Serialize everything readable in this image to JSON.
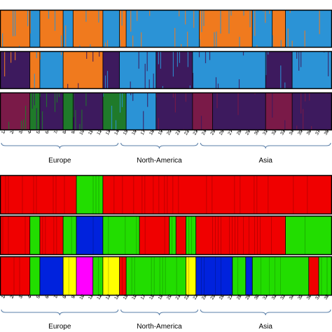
{
  "colors": {
    "orange": "#f07a1e",
    "blue": "#2b93d6",
    "purple": "#3d1a5e",
    "maroon": "#7a1a48",
    "green": "#1f7a2a",
    "red": "#f00000",
    "lime": "#22dd00",
    "navy": "#0022dd",
    "yellow": "#ffff00",
    "magenta": "#ff00ff"
  },
  "chart_data": [
    {
      "type": "stacked-bar-admixture",
      "panel": "top",
      "rows": [
        {
          "k": 2,
          "segments": [
            {
              "start": 0.0,
              "end": 0.09,
              "color": "orange"
            },
            {
              "start": 0.09,
              "end": 0.12,
              "color": "blue"
            },
            {
              "start": 0.12,
              "end": 0.19,
              "color": "orange"
            },
            {
              "start": 0.19,
              "end": 0.22,
              "color": "blue"
            },
            {
              "start": 0.22,
              "end": 0.31,
              "color": "orange"
            },
            {
              "start": 0.31,
              "end": 0.36,
              "color": "blue"
            },
            {
              "start": 0.36,
              "end": 0.38,
              "color": "orange"
            },
            {
              "start": 0.38,
              "end": 0.6,
              "color": "blue"
            },
            {
              "start": 0.6,
              "end": 0.76,
              "color": "orange"
            },
            {
              "start": 0.76,
              "end": 0.82,
              "color": "blue"
            },
            {
              "start": 0.82,
              "end": 0.86,
              "color": "orange"
            },
            {
              "start": 0.86,
              "end": 1.0,
              "color": "blue"
            }
          ]
        },
        {
          "k": 3,
          "segments": [
            {
              "start": 0.0,
              "end": 0.09,
              "color": "purple"
            },
            {
              "start": 0.09,
              "end": 0.12,
              "color": "orange"
            },
            {
              "start": 0.12,
              "end": 0.19,
              "color": "blue"
            },
            {
              "start": 0.19,
              "end": 0.31,
              "color": "orange"
            },
            {
              "start": 0.31,
              "end": 0.36,
              "color": "purple"
            },
            {
              "start": 0.36,
              "end": 0.47,
              "color": "blue"
            },
            {
              "start": 0.47,
              "end": 0.58,
              "color": "purple"
            },
            {
              "start": 0.58,
              "end": 0.8,
              "color": "blue"
            },
            {
              "start": 0.8,
              "end": 0.88,
              "color": "purple"
            },
            {
              "start": 0.88,
              "end": 1.0,
              "color": "blue"
            }
          ]
        },
        {
          "k": 4,
          "segments": [
            {
              "start": 0.0,
              "end": 0.09,
              "color": "maroon"
            },
            {
              "start": 0.09,
              "end": 0.12,
              "color": "green"
            },
            {
              "start": 0.12,
              "end": 0.19,
              "color": "purple"
            },
            {
              "start": 0.19,
              "end": 0.22,
              "color": "green"
            },
            {
              "start": 0.22,
              "end": 0.31,
              "color": "purple"
            },
            {
              "start": 0.31,
              "end": 0.38,
              "color": "green"
            },
            {
              "start": 0.38,
              "end": 0.47,
              "color": "blue"
            },
            {
              "start": 0.47,
              "end": 0.58,
              "color": "purple"
            },
            {
              "start": 0.58,
              "end": 0.64,
              "color": "maroon"
            },
            {
              "start": 0.64,
              "end": 0.8,
              "color": "purple"
            },
            {
              "start": 0.8,
              "end": 0.88,
              "color": "maroon"
            },
            {
              "start": 0.88,
              "end": 1.0,
              "color": "purple"
            }
          ]
        }
      ],
      "tick_labels": [
        "1",
        "2",
        "3",
        "4",
        "5",
        "6",
        "7",
        "8",
        "9",
        "10",
        "11",
        "12",
        "13",
        "14",
        "15",
        "16",
        "17",
        "18",
        "19",
        "20",
        "21",
        "22",
        "23",
        "24",
        "25",
        "26",
        "27",
        "28",
        "29",
        "30",
        "31",
        "32",
        "33",
        "34",
        "35",
        "36",
        "37",
        "38"
      ],
      "regions": [
        {
          "label": "Europe",
          "start": 0.0,
          "end": 0.36
        },
        {
          "label": "North-America",
          "start": 0.36,
          "end": 0.6
        },
        {
          "label": "Asia",
          "start": 0.6,
          "end": 1.0
        }
      ]
    },
    {
      "type": "stacked-bar-cluster",
      "panel": "bottom",
      "rows": [
        {
          "k": 2,
          "segments": [
            {
              "start": 0.0,
              "end": 0.23,
              "color": "red"
            },
            {
              "start": 0.23,
              "end": 0.31,
              "color": "lime"
            },
            {
              "start": 0.31,
              "end": 1.0,
              "color": "red"
            }
          ]
        },
        {
          "k": 3,
          "segments": [
            {
              "start": 0.0,
              "end": 0.09,
              "color": "red"
            },
            {
              "start": 0.09,
              "end": 0.12,
              "color": "lime"
            },
            {
              "start": 0.12,
              "end": 0.19,
              "color": "red"
            },
            {
              "start": 0.19,
              "end": 0.23,
              "color": "lime"
            },
            {
              "start": 0.23,
              "end": 0.31,
              "color": "navy"
            },
            {
              "start": 0.31,
              "end": 0.42,
              "color": "lime"
            },
            {
              "start": 0.42,
              "end": 0.51,
              "color": "red"
            },
            {
              "start": 0.51,
              "end": 0.53,
              "color": "lime"
            },
            {
              "start": 0.53,
              "end": 0.56,
              "color": "red"
            },
            {
              "start": 0.56,
              "end": 0.59,
              "color": "lime"
            },
            {
              "start": 0.59,
              "end": 0.86,
              "color": "red"
            },
            {
              "start": 0.86,
              "end": 1.0,
              "color": "lime"
            }
          ]
        },
        {
          "k": 4,
          "segments": [
            {
              "start": 0.0,
              "end": 0.09,
              "color": "red"
            },
            {
              "start": 0.09,
              "end": 0.12,
              "color": "lime"
            },
            {
              "start": 0.12,
              "end": 0.19,
              "color": "navy"
            },
            {
              "start": 0.19,
              "end": 0.23,
              "color": "yellow"
            },
            {
              "start": 0.23,
              "end": 0.28,
              "color": "magenta"
            },
            {
              "start": 0.28,
              "end": 0.31,
              "color": "lime"
            },
            {
              "start": 0.31,
              "end": 0.36,
              "color": "yellow"
            },
            {
              "start": 0.36,
              "end": 0.38,
              "color": "red"
            },
            {
              "start": 0.38,
              "end": 0.56,
              "color": "lime"
            },
            {
              "start": 0.56,
              "end": 0.59,
              "color": "yellow"
            },
            {
              "start": 0.59,
              "end": 0.7,
              "color": "navy"
            },
            {
              "start": 0.7,
              "end": 0.74,
              "color": "lime"
            },
            {
              "start": 0.74,
              "end": 0.76,
              "color": "navy"
            },
            {
              "start": 0.76,
              "end": 0.93,
              "color": "lime"
            },
            {
              "start": 0.93,
              "end": 0.96,
              "color": "red"
            },
            {
              "start": 0.96,
              "end": 1.0,
              "color": "lime"
            }
          ]
        }
      ],
      "tick_labels": [
        "1",
        "2",
        "3",
        "4",
        "5",
        "6",
        "7",
        "8",
        "9",
        "10",
        "11",
        "12",
        "13",
        "14",
        "15",
        "16",
        "17",
        "18",
        "19",
        "20",
        "21",
        "22",
        "23",
        "24",
        "25",
        "26",
        "27",
        "28",
        "29",
        "30",
        "31",
        "32",
        "33",
        "34",
        "35",
        "36",
        "37",
        "38"
      ],
      "regions": [
        {
          "label": "Europe",
          "start": 0.0,
          "end": 0.36
        },
        {
          "label": "North-America",
          "start": 0.36,
          "end": 0.6
        },
        {
          "label": "Asia",
          "start": 0.6,
          "end": 1.0
        }
      ]
    }
  ]
}
